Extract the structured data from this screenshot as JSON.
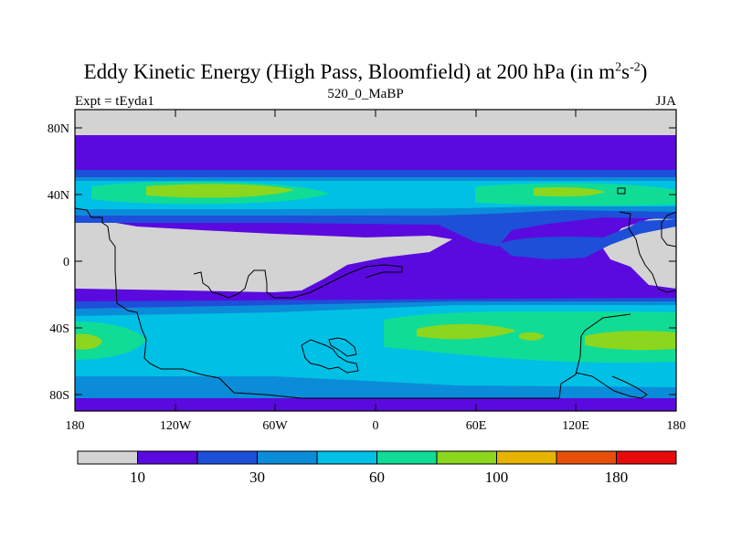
{
  "title": {
    "main": "Eddy Kinetic Energy (High Pass, Bloomfield) at 200 hPa (in m",
    "sup1": "2",
    "mid": "s",
    "sup2": "-2",
    "end": ")"
  },
  "subtitle": "520_0_MaBP",
  "experiment_label": "Expt = tEyda1",
  "season_label": "JJA",
  "axes": {
    "y_ticks": [
      "80N",
      "40N",
      "0",
      "40S",
      "80S"
    ],
    "x_ticks": [
      "180",
      "120W",
      "60W",
      "0",
      "60E",
      "120E",
      "180"
    ]
  },
  "colorbar": {
    "colors": [
      "#d3d3d3",
      "#5a0ade",
      "#1e4fd8",
      "#0b8cd8",
      "#00c0e6",
      "#10dc96",
      "#8cd61e",
      "#e6b400",
      "#e6500a",
      "#e60a0a"
    ],
    "labels": [
      "10",
      "30",
      "60",
      "100",
      "180"
    ]
  }
}
